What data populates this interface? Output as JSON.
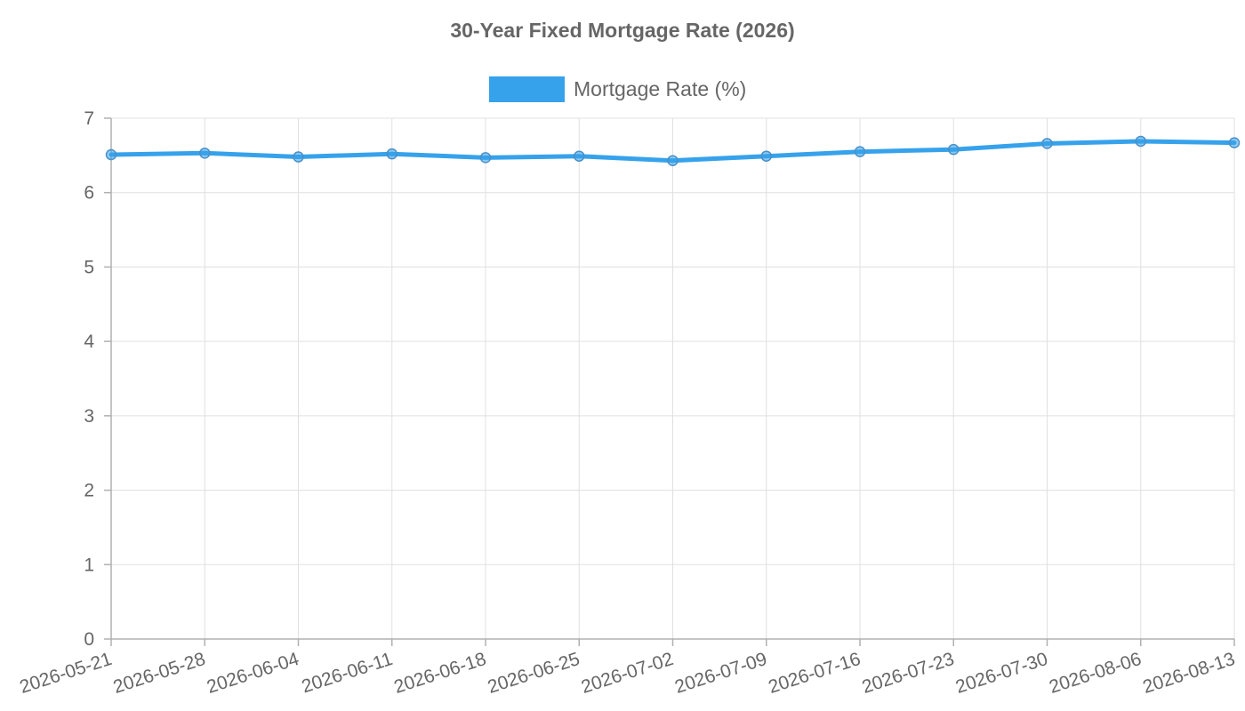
{
  "chart_data": {
    "type": "line",
    "title": "30-Year Fixed Mortgage Rate (2026)",
    "categories": [
      "2026-05-21",
      "2026-05-28",
      "2026-06-04",
      "2026-06-11",
      "2026-06-18",
      "2026-06-25",
      "2026-07-02",
      "2026-07-09",
      "2026-07-16",
      "2026-07-23",
      "2026-07-30",
      "2026-08-06",
      "2026-08-13"
    ],
    "series": [
      {
        "name": "Mortgage Rate (%)",
        "values": [
          6.51,
          6.53,
          6.48,
          6.52,
          6.47,
          6.49,
          6.43,
          6.49,
          6.55,
          6.58,
          6.66,
          6.69,
          6.67
        ],
        "color": "#36a2eb"
      }
    ],
    "xlabel": "",
    "ylabel": "",
    "ylim": [
      0,
      7
    ],
    "yticks": [
      "0",
      "1",
      "2",
      "3",
      "4",
      "5",
      "6",
      "7"
    ],
    "grid": true,
    "legend_position": "top-center"
  }
}
